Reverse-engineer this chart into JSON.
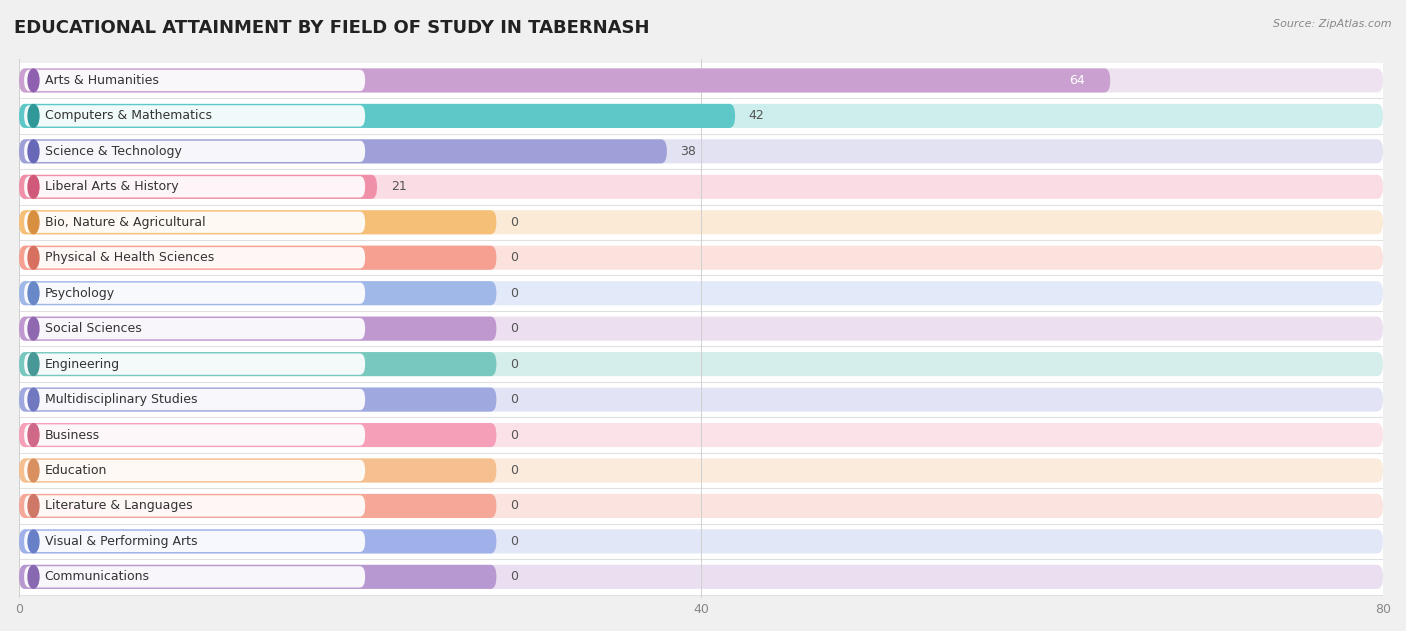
{
  "title": "EDUCATIONAL ATTAINMENT BY FIELD OF STUDY IN TABERNASH",
  "source": "Source: ZipAtlas.com",
  "categories": [
    "Arts & Humanities",
    "Computers & Mathematics",
    "Science & Technology",
    "Liberal Arts & History",
    "Bio, Nature & Agricultural",
    "Physical & Health Sciences",
    "Psychology",
    "Social Sciences",
    "Engineering",
    "Multidisciplinary Studies",
    "Business",
    "Education",
    "Literature & Languages",
    "Visual & Performing Arts",
    "Communications"
  ],
  "values": [
    64,
    42,
    38,
    21,
    0,
    0,
    0,
    0,
    0,
    0,
    0,
    0,
    0,
    0,
    0
  ],
  "bar_colors": [
    "#c9a0d0",
    "#5ec8c8",
    "#a0a0d8",
    "#f090a8",
    "#f5bf78",
    "#f5a090",
    "#a0b8e8",
    "#c098d0",
    "#78c8c0",
    "#a0a8e0",
    "#f5a0b8",
    "#f5bf90",
    "#f5a898",
    "#a0b0e8",
    "#b898d0"
  ],
  "label_dot_colors": [
    "#9060b0",
    "#309898",
    "#6868b8",
    "#d05878",
    "#d89040",
    "#d87060",
    "#6888c8",
    "#9068b0",
    "#489898",
    "#7078c0",
    "#d06888",
    "#d89060",
    "#d07868",
    "#6880c8",
    "#8868b0"
  ],
  "xlim": [
    0,
    80
  ],
  "xticks": [
    0,
    40,
    80
  ],
  "background_color": "#f0f0f0",
  "row_bg_colors": [
    "#ffffff",
    "#f8f8f8"
  ],
  "title_fontsize": 13,
  "label_fontsize": 9,
  "value_fontsize": 9,
  "zero_bar_width": 28
}
